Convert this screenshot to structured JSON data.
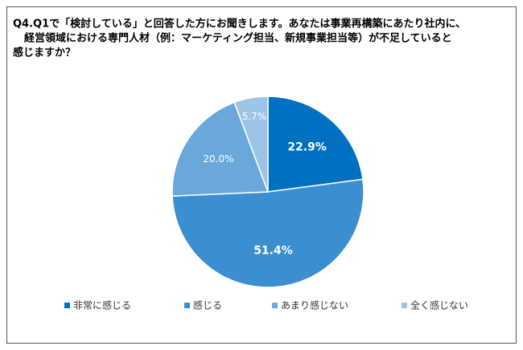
{
  "chart_data": {
    "type": "pie",
    "title": [
      "Q4.Q1で「検討している」と回答した方にお聞きします。あなたは事業再構築にあたり社内に、",
      "経営領域における専門人材（例：マーケティング担当、新規事業担当等）が不足していると",
      "感じますか？"
    ],
    "categories": [
      "非常に感じる",
      "感じる",
      "あまり感じない",
      "全く感じない"
    ],
    "values": [
      22.9,
      51.4,
      20.0,
      5.7
    ],
    "value_labels": [
      "22.9%",
      "51.4%",
      "20.0%",
      "5.7%"
    ],
    "colors": [
      "#0070c0",
      "#3b8ed0",
      "#6aa8dc",
      "#9dc3e6"
    ],
    "legend": "bottom"
  }
}
